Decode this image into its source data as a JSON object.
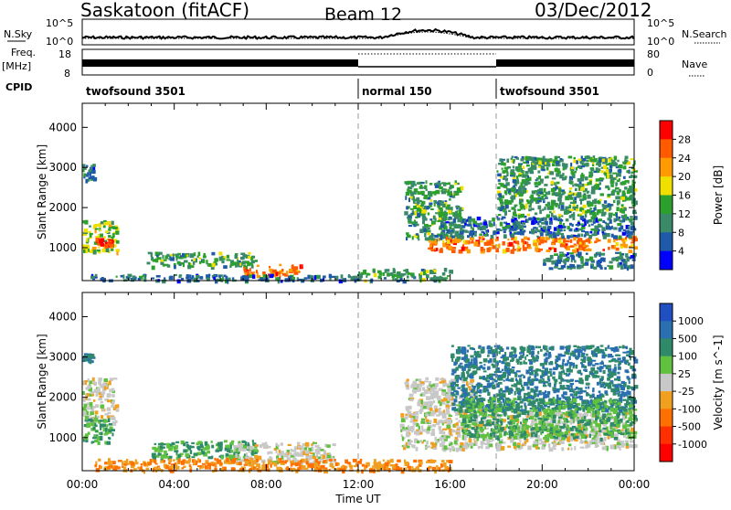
{
  "header": {
    "site": "Saskatoon (fitACF)",
    "beam": "Beam 12",
    "date": "03/Dec/2012"
  },
  "top_panels": {
    "nsky_label": "N.Sky",
    "nsky_ticks": [
      "10^5",
      "10^0"
    ],
    "nsearch_label": "N.Search",
    "nsearch_ticks": [
      "10^5",
      "10^0"
    ],
    "freq_label_1": "Freq.",
    "freq_label_2": "[MHz]",
    "freq_ticks": [
      "18",
      "8"
    ],
    "nave_label": "Nave",
    "nave_ticks": [
      "80",
      "0"
    ],
    "cpid_label": "CPID",
    "cpid_segments": [
      {
        "label": "twofsound 3501",
        "start_hour": 0,
        "end_hour": 12
      },
      {
        "label": "normal 150",
        "start_hour": 12,
        "end_hour": 18
      },
      {
        "label": "twofsound 3501",
        "start_hour": 18,
        "end_hour": 24
      }
    ]
  },
  "power_colorbar": {
    "label": "Power [dB]",
    "ticks": [
      "28",
      "24",
      "20",
      "16",
      "12",
      "8",
      "4"
    ],
    "colors": [
      "#ff0000",
      "#ff5a00",
      "#ff9a00",
      "#f0e000",
      "#2ca02c",
      "#3a8a6a",
      "#1f5aa8",
      "#0000ff"
    ]
  },
  "velocity_colorbar": {
    "label": "Velocity [m s^-1]",
    "ticks": [
      "1000",
      "500",
      "100",
      "25",
      "-25",
      "-100",
      "-500",
      "-1000"
    ],
    "colors": [
      "#1f4fc0",
      "#2a70b0",
      "#2f8a6a",
      "#60c040",
      "#c8c8c8",
      "#f0a020",
      "#ff7000",
      "#ff3000",
      "#ff0000"
    ]
  },
  "chart_data": [
    {
      "type": "heatmap",
      "title": "",
      "xlabel": "",
      "ylabel": "Slant Range [km]",
      "xlim": [
        0,
        24
      ],
      "ylim": [
        180,
        4600
      ],
      "y_ticks": [
        1000,
        2000,
        3000,
        4000
      ],
      "x_tick_labels": [
        "00:00",
        "04:00",
        "08:00",
        "12:00",
        "16:00",
        "20:00",
        "00:00"
      ],
      "colorbar_label": "Power [dB]",
      "regions": [
        {
          "t0": 0.0,
          "t1": 1.5,
          "r0": 900,
          "r1": 1700,
          "value": 16
        },
        {
          "t0": 0.5,
          "t1": 1.3,
          "r0": 1050,
          "r1": 1250,
          "value": 28
        },
        {
          "t0": 0.0,
          "t1": 0.5,
          "r0": 2700,
          "r1": 3100,
          "value": 8
        },
        {
          "t0": 2.8,
          "t1": 7.5,
          "r0": 550,
          "r1": 900,
          "value": 12
        },
        {
          "t0": 7.0,
          "t1": 9.5,
          "r0": 300,
          "r1": 600,
          "value": 24
        },
        {
          "t0": 0.2,
          "t1": 12.0,
          "r0": 200,
          "r1": 350,
          "value": 8
        },
        {
          "t0": 12.0,
          "t1": 16.0,
          "r0": 200,
          "r1": 500,
          "value": 12
        },
        {
          "t0": 14.0,
          "t1": 16.5,
          "r0": 1200,
          "r1": 2700,
          "value": 12
        },
        {
          "t0": 15.0,
          "t1": 24.0,
          "r0": 950,
          "r1": 1300,
          "value": 24
        },
        {
          "t0": 15.5,
          "t1": 24.0,
          "r0": 1300,
          "r1": 1800,
          "value": 8
        },
        {
          "t0": 18.0,
          "t1": 24.0,
          "r0": 1800,
          "r1": 3300,
          "value": 12
        },
        {
          "t0": 20.0,
          "t1": 24.0,
          "r0": 500,
          "r1": 900,
          "value": 8
        }
      ]
    },
    {
      "type": "heatmap",
      "title": "",
      "xlabel": "Time UT",
      "ylabel": "Slant Range [km]",
      "xlim": [
        0,
        24
      ],
      "ylim": [
        180,
        4600
      ],
      "y_ticks": [
        1000,
        2000,
        3000,
        4000
      ],
      "x_tick_labels": [
        "00:00",
        "04:00",
        "08:00",
        "12:00",
        "16:00",
        "20:00",
        "00:00"
      ],
      "colorbar_label": "Velocity [m s^-1]",
      "regions": [
        {
          "t0": 0.0,
          "t1": 1.5,
          "r0": 1400,
          "r1": 2500,
          "value": 0
        },
        {
          "t0": 0.0,
          "t1": 1.3,
          "r0": 900,
          "r1": 1500,
          "value": 100
        },
        {
          "t0": 0.0,
          "t1": 0.4,
          "r0": 2900,
          "r1": 3100,
          "value": 500
        },
        {
          "t0": 3.0,
          "t1": 7.5,
          "r0": 500,
          "r1": 950,
          "value": 100
        },
        {
          "t0": 6.5,
          "t1": 11.0,
          "r0": 400,
          "r1": 900,
          "value": 0
        },
        {
          "t0": 0.5,
          "t1": 16.0,
          "r0": 200,
          "r1": 500,
          "value": -100
        },
        {
          "t0": 13.8,
          "t1": 24.0,
          "r0": 750,
          "r1": 1700,
          "value": 0
        },
        {
          "t0": 14.0,
          "t1": 17.0,
          "r0": 1700,
          "r1": 2500,
          "value": 0
        },
        {
          "t0": 16.0,
          "t1": 24.0,
          "r0": 1700,
          "r1": 3300,
          "value": 500
        },
        {
          "t0": 16.5,
          "t1": 24.0,
          "r0": 1000,
          "r1": 2000,
          "value": 100
        }
      ]
    }
  ]
}
